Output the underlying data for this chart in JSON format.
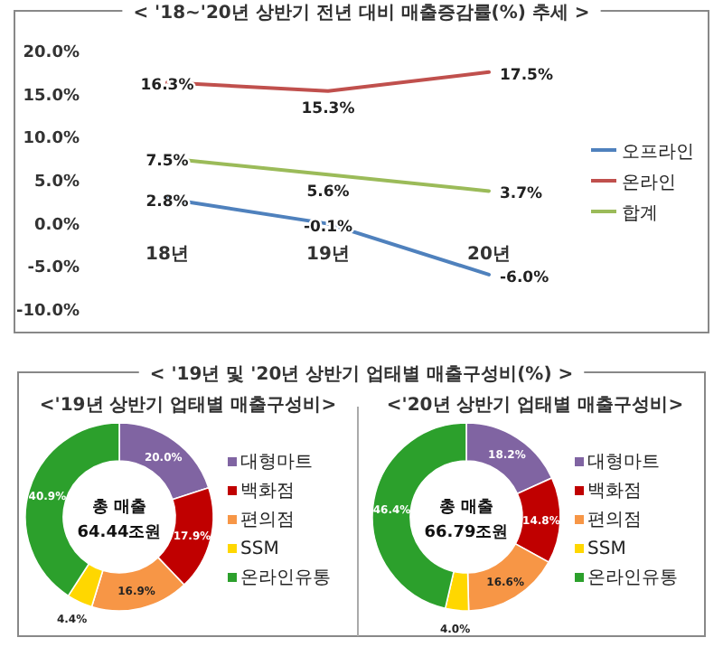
{
  "chart_data": [
    {
      "type": "line",
      "title": "< '18~'20년 상반기 전년 대비 매출증감률(%) 추세 >",
      "categories": [
        "18년",
        "19년",
        "20년"
      ],
      "series": [
        {
          "name": "오프라인",
          "color": "#4f81bd",
          "values": [
            2.8,
            -0.1,
            -6.0
          ],
          "value_labels": [
            "2.8%",
            "-0.1%",
            "-6.0%"
          ]
        },
        {
          "name": "온라인",
          "color": "#c0504d",
          "values": [
            16.3,
            15.3,
            17.5
          ],
          "value_labels": [
            "16.3%",
            "15.3%",
            "17.5%"
          ]
        },
        {
          "name": "합계",
          "color": "#9bbb59",
          "values": [
            7.5,
            5.6,
            3.7
          ],
          "value_labels": [
            "7.5%",
            "5.6%",
            "3.7%"
          ]
        }
      ],
      "ylim": [
        -10,
        20
      ],
      "yticks": [
        {
          "value": -10,
          "label": "-10.0%"
        },
        {
          "value": -5,
          "label": "-5.0%"
        },
        {
          "value": 0,
          "label": "0.0%"
        },
        {
          "value": 5,
          "label": "5.0%"
        },
        {
          "value": 10,
          "label": "10.0%"
        },
        {
          "value": 15,
          "label": "15.0%"
        },
        {
          "value": 20,
          "label": "20.0%"
        }
      ],
      "legend": "right",
      "grid": false,
      "marker": "none",
      "line_style": "solid"
    },
    {
      "type": "donut",
      "title": "<'19년 상반기 업태별 매출구성비>",
      "categories": [
        "대형마트",
        "백화점",
        "편의점",
        "SSM",
        "온라인유통"
      ],
      "values": [
        20.0,
        17.9,
        16.9,
        4.4,
        40.9
      ],
      "value_labels": [
        "20.0%",
        "17.9%",
        "16.9%",
        "4.4%",
        "40.9%"
      ],
      "colors": [
        "#8064a2",
        "#c00000",
        "#f79646",
        "#ffd700",
        "#2ca02c"
      ],
      "legend": "right",
      "annotations": [
        "< '19년 및 '20년 상반기 업태별 매출구성비(%) >",
        "총 매출",
        "64.44조원"
      ]
    },
    {
      "type": "donut",
      "title": "<'20년 상반기 업태별 매출구성비>",
      "categories": [
        "대형마트",
        "백화점",
        "편의점",
        "SSM",
        "온라인유통"
      ],
      "values": [
        18.2,
        14.8,
        16.6,
        4.0,
        46.4
      ],
      "value_labels": [
        "18.2%",
        "14.8%",
        "16.6%",
        "4.0%",
        "46.4%"
      ],
      "colors": [
        "#8064a2",
        "#c00000",
        "#f79646",
        "#ffd700",
        "#2ca02c"
      ],
      "legend": "right",
      "annotations": [
        "총 매출",
        "66.79조원"
      ]
    }
  ]
}
